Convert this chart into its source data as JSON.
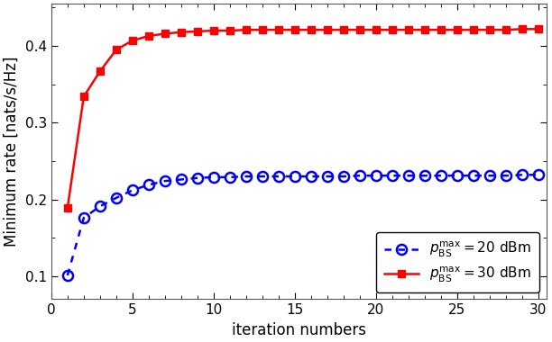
{
  "title": "",
  "xlabel": "iteration numbers",
  "ylabel": "Minimum rate [nats/s/Hz]",
  "xlim": [
    0,
    30.5
  ],
  "ylim": [
    0.07,
    0.455
  ],
  "yticks": [
    0.1,
    0.2,
    0.3,
    0.4
  ],
  "xticks": [
    0,
    5,
    10,
    15,
    20,
    25,
    30
  ],
  "blue_color": "#0000FF",
  "red_color": "#FF0000",
  "bg_color": "#FFFFFF",
  "blue_values": [
    0.101,
    0.176,
    0.191,
    0.202,
    0.212,
    0.219,
    0.224,
    0.226,
    0.228,
    0.229,
    0.229,
    0.23,
    0.23,
    0.23,
    0.23,
    0.23,
    0.23,
    0.23,
    0.231,
    0.231,
    0.231,
    0.231,
    0.231,
    0.231,
    0.231,
    0.231,
    0.231,
    0.231,
    0.232,
    0.232
  ],
  "red_values": [
    0.189,
    0.334,
    0.367,
    0.395,
    0.407,
    0.413,
    0.416,
    0.418,
    0.419,
    0.42,
    0.42,
    0.421,
    0.421,
    0.421,
    0.421,
    0.421,
    0.421,
    0.421,
    0.421,
    0.421,
    0.421,
    0.421,
    0.421,
    0.421,
    0.421,
    0.421,
    0.421,
    0.421,
    0.422,
    0.422
  ],
  "legend_blue": "$p_{\\mathrm{BS}}^{\\mathrm{max}} = 20$ dBm",
  "legend_red": "$p_{\\mathrm{BS}}^{\\mathrm{max}} = 30$ dBm",
  "blue_marker_size": 8,
  "red_marker_size": 6,
  "linewidth": 1.8,
  "xlabel_fontsize": 12,
  "ylabel_fontsize": 12,
  "tick_fontsize": 11,
  "legend_fontsize": 11
}
